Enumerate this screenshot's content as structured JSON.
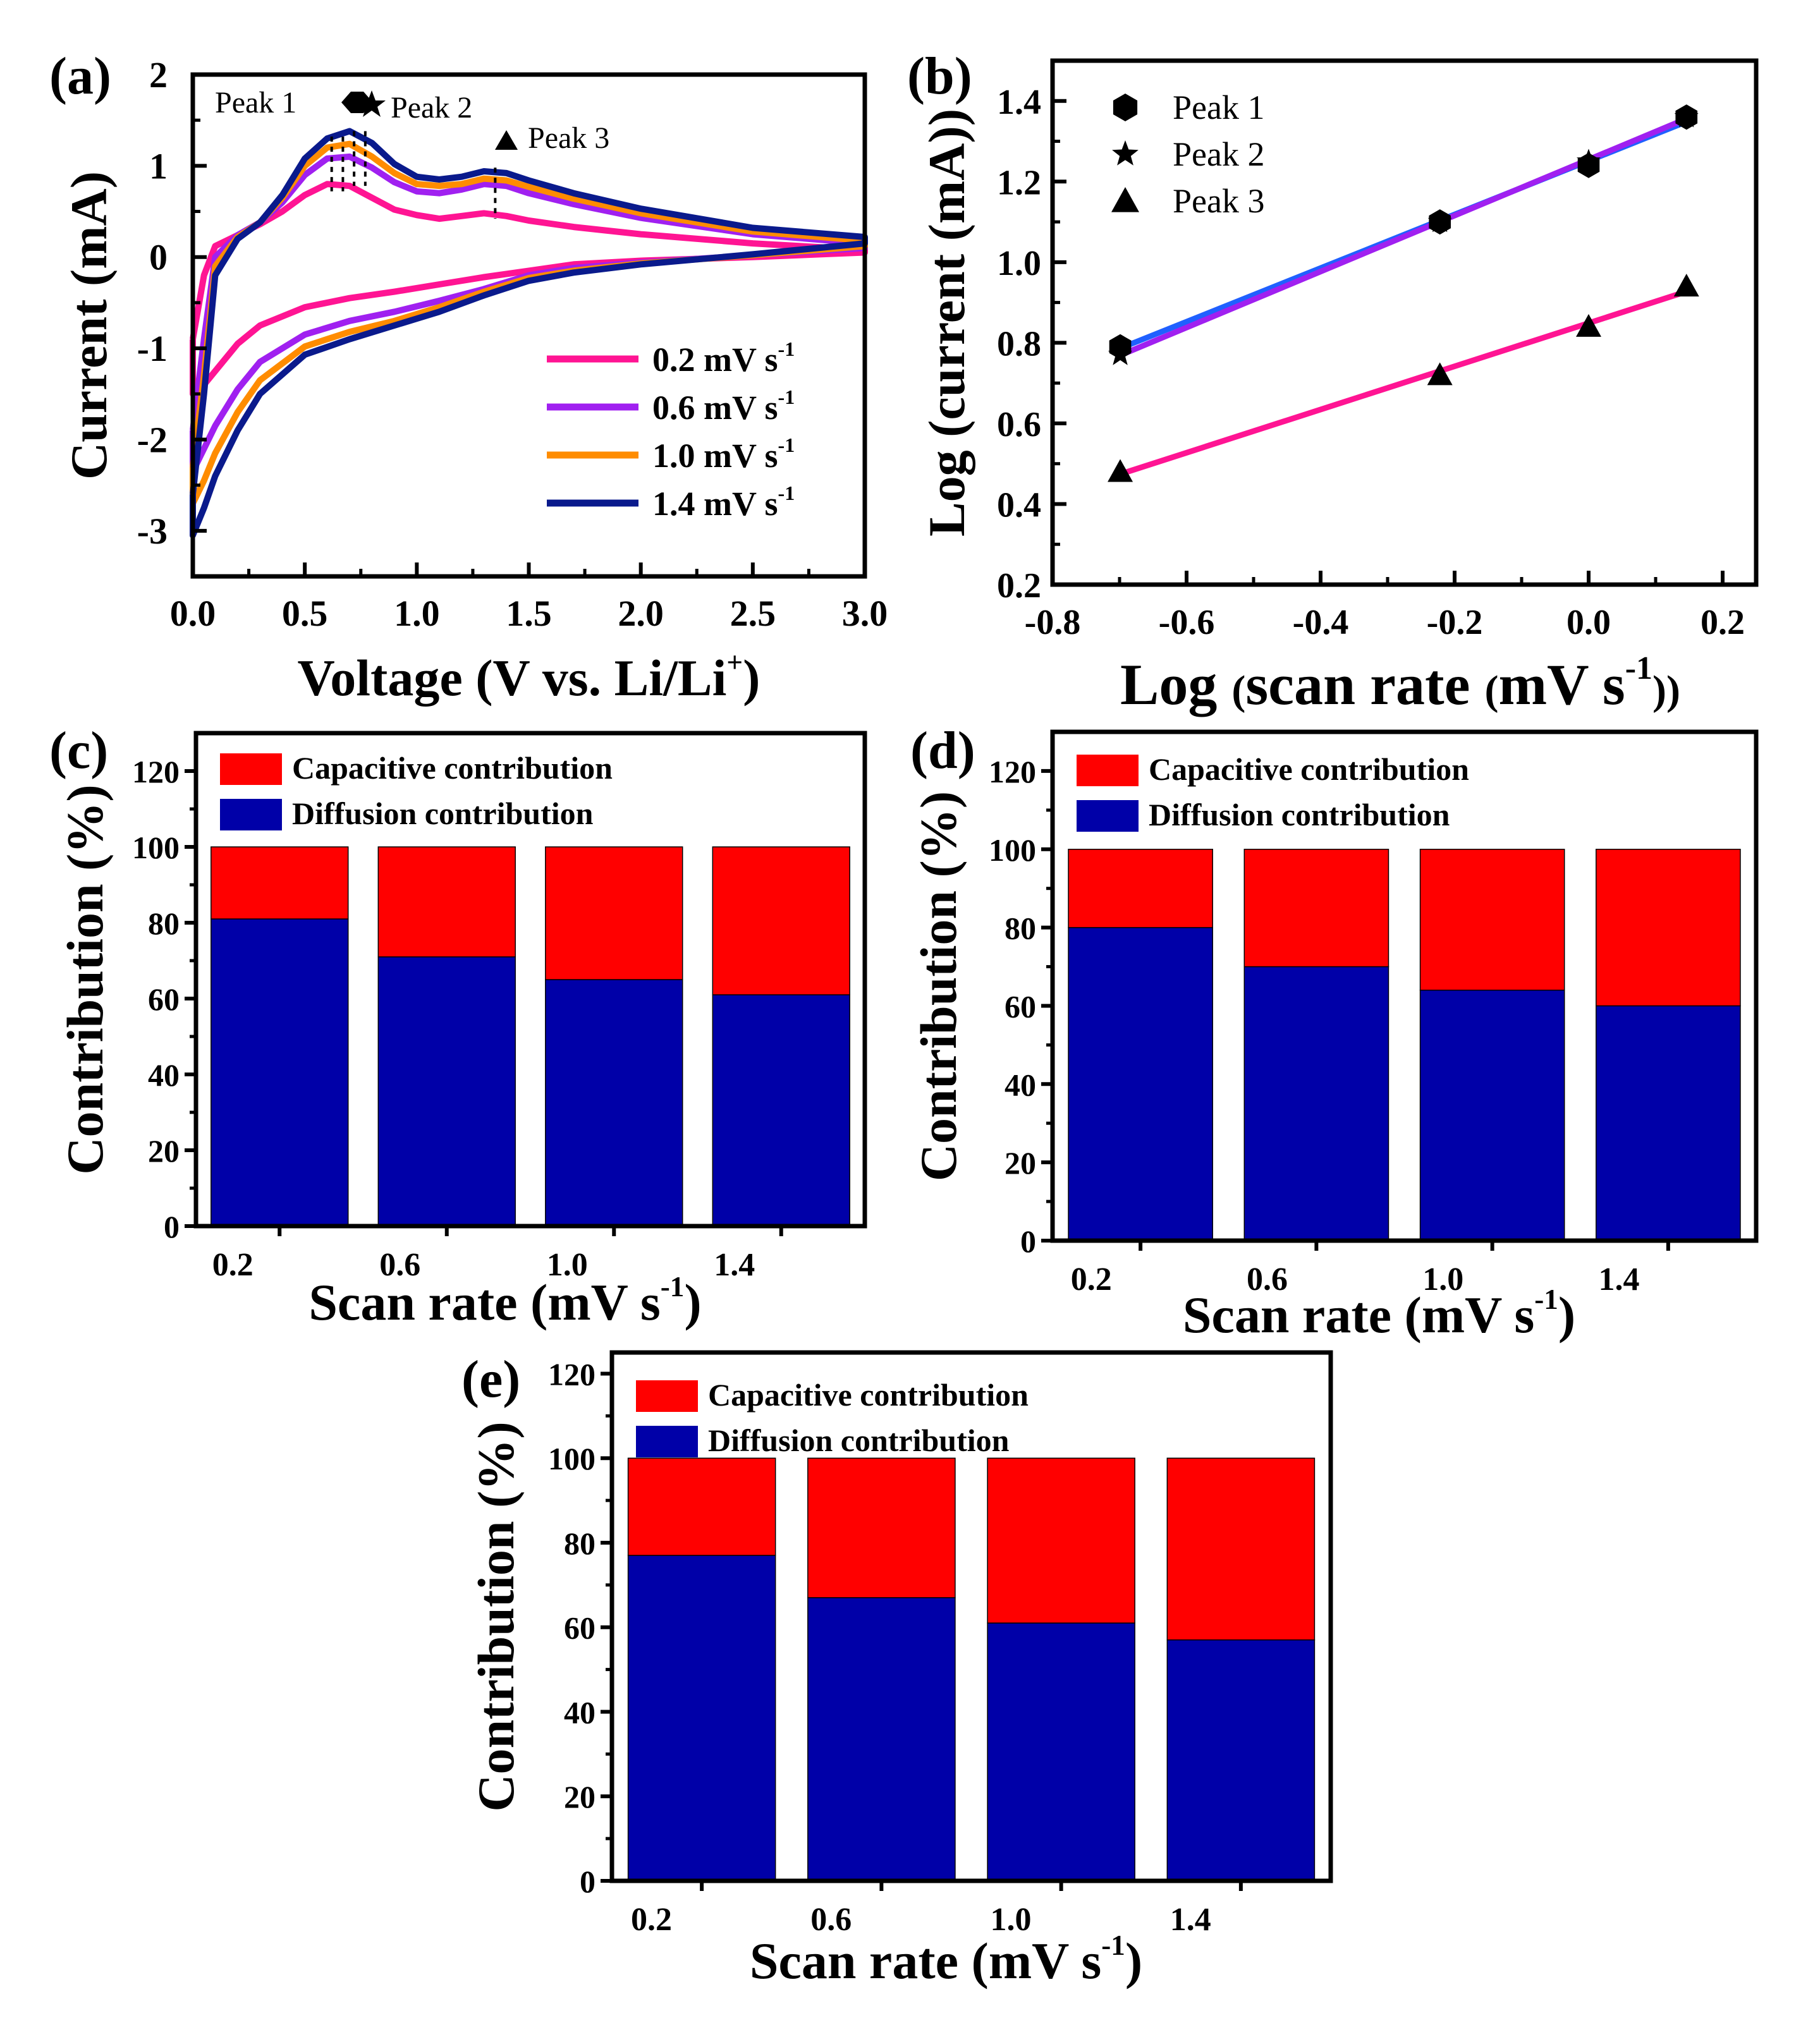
{
  "chart_data": [
    {
      "panel": "(a)",
      "type": "line",
      "xlabel": "Voltage (V vs. Li/Li",
      "xlabel_sup": "+",
      "xlabel_end": ")",
      "ylabel": "Current (mA)",
      "xlim": [
        0.0,
        3.0
      ],
      "ylim": [
        -3.5,
        2.0
      ],
      "xticks": [
        0.0,
        0.5,
        1.0,
        1.5,
        2.0,
        2.5,
        3.0
      ],
      "yticks": [
        -3,
        -2,
        -1,
        0,
        1,
        2
      ],
      "xtick_labels": [
        "0.0",
        "0.5",
        "1.0",
        "1.5",
        "2.0",
        "2.5",
        "3.0"
      ],
      "ytick_labels": [
        "-3",
        "-2",
        "-1",
        "0",
        "1",
        "2"
      ],
      "legend_position": "bottom-right",
      "annotations": [
        "Peak 1",
        "Peak 2",
        "Peak 3"
      ],
      "series": [
        {
          "name": "0.2 mV s",
          "name_sup": "-1",
          "color": "#ff1493",
          "upper": [
            [
              0.0,
              -0.9
            ],
            [
              0.05,
              -0.2
            ],
            [
              0.1,
              0.12
            ],
            [
              0.2,
              0.24
            ],
            [
              0.3,
              0.36
            ],
            [
              0.4,
              0.5
            ],
            [
              0.5,
              0.68
            ],
            [
              0.6,
              0.8
            ],
            [
              0.7,
              0.78
            ],
            [
              0.8,
              0.65
            ],
            [
              0.9,
              0.52
            ],
            [
              1.0,
              0.46
            ],
            [
              1.1,
              0.42
            ],
            [
              1.2,
              0.45
            ],
            [
              1.3,
              0.48
            ],
            [
              1.4,
              0.45
            ],
            [
              1.5,
              0.4
            ],
            [
              1.7,
              0.33
            ],
            [
              2.0,
              0.25
            ],
            [
              2.5,
              0.15
            ],
            [
              3.0,
              0.08
            ]
          ],
          "lower": [
            [
              3.0,
              0.05
            ],
            [
              2.5,
              0.0
            ],
            [
              2.0,
              -0.04
            ],
            [
              1.7,
              -0.08
            ],
            [
              1.5,
              -0.15
            ],
            [
              1.3,
              -0.22
            ],
            [
              1.1,
              -0.3
            ],
            [
              0.9,
              -0.38
            ],
            [
              0.7,
              -0.45
            ],
            [
              0.5,
              -0.55
            ],
            [
              0.3,
              -0.75
            ],
            [
              0.2,
              -0.95
            ],
            [
              0.1,
              -1.25
            ],
            [
              0.05,
              -1.4
            ],
            [
              0.0,
              -1.5
            ]
          ]
        },
        {
          "name": "0.6 mV s",
          "name_sup": "-1",
          "color": "#a020f0",
          "upper": [
            [
              0.0,
              -1.9
            ],
            [
              0.05,
              -0.9
            ],
            [
              0.1,
              0.0
            ],
            [
              0.2,
              0.24
            ],
            [
              0.3,
              0.38
            ],
            [
              0.4,
              0.6
            ],
            [
              0.5,
              0.9
            ],
            [
              0.6,
              1.08
            ],
            [
              0.7,
              1.1
            ],
            [
              0.8,
              0.98
            ],
            [
              0.9,
              0.82
            ],
            [
              1.0,
              0.72
            ],
            [
              1.1,
              0.7
            ],
            [
              1.2,
              0.74
            ],
            [
              1.3,
              0.8
            ],
            [
              1.4,
              0.78
            ],
            [
              1.5,
              0.7
            ],
            [
              1.7,
              0.58
            ],
            [
              2.0,
              0.43
            ],
            [
              2.5,
              0.25
            ],
            [
              3.0,
              0.15
            ]
          ],
          "lower": [
            [
              3.0,
              0.1
            ],
            [
              2.5,
              0.02
            ],
            [
              2.0,
              -0.06
            ],
            [
              1.7,
              -0.12
            ],
            [
              1.5,
              -0.2
            ],
            [
              1.3,
              -0.35
            ],
            [
              1.1,
              -0.48
            ],
            [
              0.9,
              -0.6
            ],
            [
              0.7,
              -0.7
            ],
            [
              0.5,
              -0.85
            ],
            [
              0.3,
              -1.15
            ],
            [
              0.2,
              -1.45
            ],
            [
              0.1,
              -1.85
            ],
            [
              0.05,
              -2.1
            ],
            [
              0.0,
              -2.35
            ]
          ]
        },
        {
          "name": "1.0 mV s",
          "name_sup": "-1",
          "color": "#ff8c00",
          "upper": [
            [
              0.0,
              -2.3
            ],
            [
              0.05,
              -1.3
            ],
            [
              0.1,
              -0.1
            ],
            [
              0.2,
              0.22
            ],
            [
              0.3,
              0.38
            ],
            [
              0.4,
              0.65
            ],
            [
              0.5,
              1.0
            ],
            [
              0.6,
              1.2
            ],
            [
              0.7,
              1.24
            ],
            [
              0.8,
              1.1
            ],
            [
              0.9,
              0.92
            ],
            [
              1.0,
              0.8
            ],
            [
              1.1,
              0.78
            ],
            [
              1.2,
              0.8
            ],
            [
              1.3,
              0.86
            ],
            [
              1.4,
              0.84
            ],
            [
              1.5,
              0.77
            ],
            [
              1.7,
              0.64
            ],
            [
              2.0,
              0.48
            ],
            [
              2.5,
              0.28
            ],
            [
              3.0,
              0.18
            ]
          ],
          "lower": [
            [
              3.0,
              0.12
            ],
            [
              2.5,
              0.02
            ],
            [
              2.0,
              -0.07
            ],
            [
              1.7,
              -0.15
            ],
            [
              1.5,
              -0.23
            ],
            [
              1.3,
              -0.38
            ],
            [
              1.1,
              -0.55
            ],
            [
              0.9,
              -0.7
            ],
            [
              0.7,
              -0.82
            ],
            [
              0.5,
              -0.98
            ],
            [
              0.3,
              -1.35
            ],
            [
              0.2,
              -1.7
            ],
            [
              0.1,
              -2.15
            ],
            [
              0.05,
              -2.45
            ],
            [
              0.0,
              -2.7
            ]
          ]
        },
        {
          "name": "1.4 mV s",
          "name_sup": "-1",
          "color": "#0a1a8c",
          "upper": [
            [
              0.0,
              -2.6
            ],
            [
              0.05,
              -1.5
            ],
            [
              0.1,
              -0.2
            ],
            [
              0.2,
              0.2
            ],
            [
              0.3,
              0.38
            ],
            [
              0.4,
              0.68
            ],
            [
              0.5,
              1.08
            ],
            [
              0.6,
              1.3
            ],
            [
              0.7,
              1.38
            ],
            [
              0.8,
              1.25
            ],
            [
              0.9,
              1.02
            ],
            [
              1.0,
              0.88
            ],
            [
              1.1,
              0.85
            ],
            [
              1.2,
              0.88
            ],
            [
              1.3,
              0.94
            ],
            [
              1.4,
              0.92
            ],
            [
              1.5,
              0.84
            ],
            [
              1.7,
              0.7
            ],
            [
              2.0,
              0.53
            ],
            [
              2.5,
              0.32
            ],
            [
              3.0,
              0.22
            ]
          ],
          "lower": [
            [
              3.0,
              0.15
            ],
            [
              2.5,
              0.03
            ],
            [
              2.0,
              -0.08
            ],
            [
              1.7,
              -0.17
            ],
            [
              1.5,
              -0.26
            ],
            [
              1.3,
              -0.42
            ],
            [
              1.1,
              -0.6
            ],
            [
              0.9,
              -0.75
            ],
            [
              0.7,
              -0.9
            ],
            [
              0.5,
              -1.07
            ],
            [
              0.3,
              -1.5
            ],
            [
              0.2,
              -1.9
            ],
            [
              0.1,
              -2.4
            ],
            [
              0.05,
              -2.75
            ],
            [
              0.0,
              -3.05
            ]
          ]
        }
      ]
    },
    {
      "panel": "(b)",
      "type": "scatter",
      "xlabel": "Log",
      "xlabel_paren_open": "(",
      "xlabel_main": "scan rate",
      "xlabel_paren2": "(",
      "xlabel_unit": "mV s",
      "xlabel_sup": "-1",
      "xlabel_close": "))",
      "ylabel": "Log (current (mA))",
      "xlim": [
        -0.8,
        0.25
      ],
      "ylim": [
        0.2,
        1.5
      ],
      "xticks": [
        -0.8,
        -0.6,
        -0.4,
        -0.2,
        0.0,
        0.2
      ],
      "yticks": [
        0.2,
        0.4,
        0.6,
        0.8,
        1.0,
        1.2,
        1.4
      ],
      "xtick_labels": [
        "-0.8",
        "-0.6",
        "-0.4",
        "-0.2",
        "0.0",
        "0.2"
      ],
      "ytick_labels": [
        "0.2",
        "0.4",
        "0.6",
        "0.8",
        "1.0",
        "1.2",
        "1.4"
      ],
      "legend_position": "top-left",
      "series": [
        {
          "name": "Peak 1",
          "marker": "hexagon",
          "fit_color": "#2060ff",
          "x": [
            -0.699,
            -0.222,
            0.0,
            0.146
          ],
          "y": [
            0.79,
            1.1,
            1.24,
            1.36
          ]
        },
        {
          "name": "Peak 2",
          "marker": "star",
          "fit_color": "#a020f0",
          "x": [
            -0.699,
            -0.222,
            0.0,
            0.146
          ],
          "y": [
            0.77,
            1.1,
            1.25,
            1.36
          ]
        },
        {
          "name": "Peak 3",
          "marker": "triangle",
          "fit_color": "#ff1493",
          "x": [
            -0.699,
            -0.222,
            0.0,
            0.146
          ],
          "y": [
            0.48,
            0.72,
            0.84,
            0.94
          ]
        }
      ]
    },
    {
      "panel": "(c)",
      "type": "bar",
      "stacked": true,
      "categories": [
        "0.2",
        "0.6",
        "1.0",
        "1.4"
      ],
      "xlabel": "Scan rate (mV s",
      "xlabel_sup": "-1",
      "xlabel_end": ")",
      "ylabel": "Contribution (%)",
      "ylim": [
        0,
        130
      ],
      "yticks": [
        0,
        20,
        40,
        60,
        80,
        100,
        120
      ],
      "ytick_labels": [
        "0",
        "20",
        "40",
        "60",
        "80",
        "100",
        "120"
      ],
      "legend_position": "top-left",
      "series": [
        {
          "name": "Diffusion contribution",
          "color": "#0000a8",
          "values": [
            81,
            71,
            65,
            61
          ]
        },
        {
          "name": "Capacitive contribution",
          "color": "#ff0000",
          "values": [
            19,
            29,
            35,
            39
          ]
        }
      ]
    },
    {
      "panel": "(d)",
      "type": "bar",
      "stacked": true,
      "categories": [
        "0.2",
        "0.6",
        "1.0",
        "1.4"
      ],
      "xlabel": "Scan rate (mV s",
      "xlabel_sup": "-1",
      "xlabel_end": ")",
      "ylabel": "Contribution (%)",
      "ylim": [
        0,
        130
      ],
      "yticks": [
        0,
        20,
        40,
        60,
        80,
        100,
        120
      ],
      "ytick_labels": [
        "0",
        "20",
        "40",
        "60",
        "80",
        "100",
        "120"
      ],
      "legend_position": "top-left",
      "series": [
        {
          "name": "Diffusion contribution",
          "color": "#0000a8",
          "values": [
            80,
            70,
            64,
            60
          ]
        },
        {
          "name": "Capacitive contribution",
          "color": "#ff0000",
          "values": [
            20,
            30,
            36,
            40
          ]
        }
      ]
    },
    {
      "panel": "(e)",
      "type": "bar",
      "stacked": true,
      "categories": [
        "0.2",
        "0.6",
        "1.0",
        "1.4"
      ],
      "xlabel": "Scan rate (mV s",
      "xlabel_sup": "-1",
      "xlabel_end": ")",
      "ylabel": "Contribution (%)",
      "ylim": [
        0,
        125
      ],
      "yticks": [
        0,
        20,
        40,
        60,
        80,
        100,
        120
      ],
      "ytick_labels": [
        "0",
        "20",
        "40",
        "60",
        "80",
        "100",
        "120"
      ],
      "legend_position": "top-left",
      "series": [
        {
          "name": "Diffusion contribution",
          "color": "#0000a8",
          "values": [
            77,
            67,
            61,
            57
          ]
        },
        {
          "name": "Capacitive contribution",
          "color": "#ff0000",
          "values": [
            23,
            33,
            39,
            43
          ]
        }
      ]
    }
  ]
}
